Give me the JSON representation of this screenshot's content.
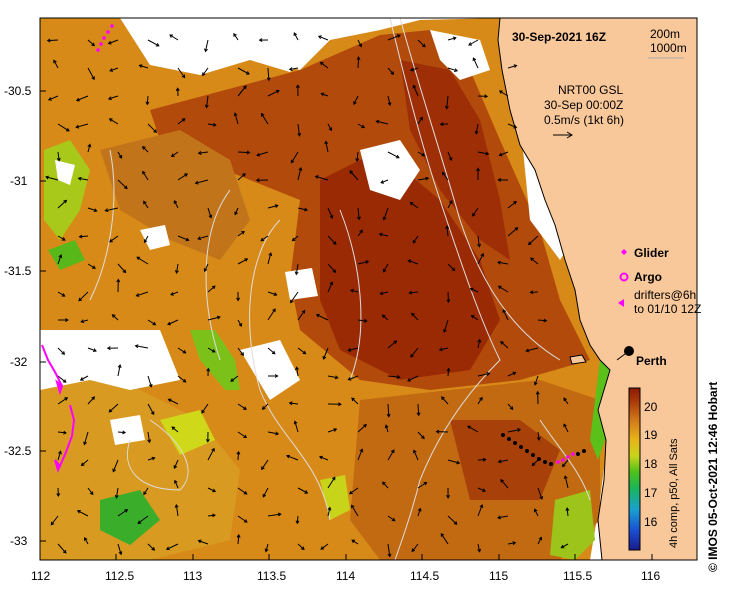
{
  "map": {
    "header_datetime": "30-Sep-2021 16Z",
    "depth_contours": [
      "200m",
      "1000m"
    ],
    "velocity_source": "NRT00 GSL",
    "velocity_date": "30-Sep 00:00Z",
    "velocity_scale": "0.5m/s (1kt 6h)",
    "legend": {
      "glider": "Glider",
      "argo": "Argo",
      "drifters_line1": "drifters@6h",
      "drifters_line2": "to 01/10 12Z"
    },
    "city": "Perth",
    "colorbar": {
      "ticks": [
        "20",
        "19",
        "18",
        "17",
        "16"
      ],
      "caption": "4h comp, p50, All Sats"
    },
    "credit": "© IMOS 05-Oct-2021 12:46 Hobart",
    "x_ticks": [
      "112",
      "112.5",
      "113",
      "113.5",
      "114",
      "114.5",
      "115",
      "115.5",
      "116"
    ],
    "y_ticks": [
      "-30.5",
      "-31",
      "-31.5",
      "-32",
      "-32.5",
      "-33"
    ],
    "colors": {
      "land": "#f9c89a",
      "coast": "#000000",
      "contour": "#d9d9d9",
      "glider": "#ff00ff",
      "argo": "#ff00ff",
      "drifter": "#ff00ff",
      "sst_warm": "#8b1a00",
      "sst_cool": "#1a9a1a"
    },
    "lon_range": [
      112,
      116.3
    ],
    "lat_range": [
      -33.1,
      -30.1
    ]
  }
}
